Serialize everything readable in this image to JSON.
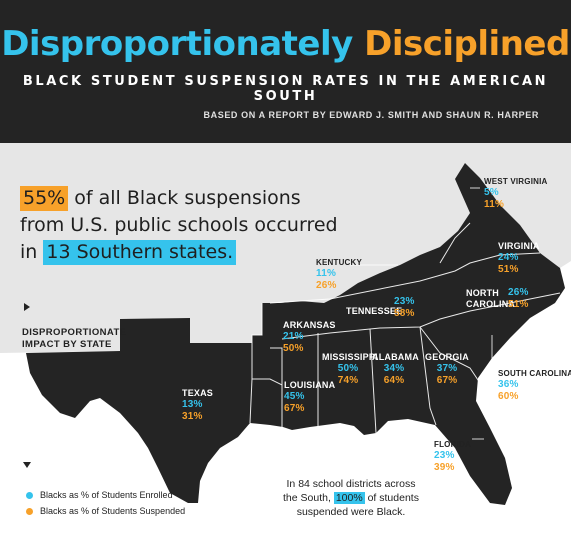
{
  "header": {
    "title_part1": "Disproportionately",
    "title_part2": "Disciplined",
    "subtitle": "BLACK STUDENT SUSPENSION RATES IN THE AMERICAN SOUTH",
    "credit": "BASED ON A REPORT BY EDWARD J. SMITH AND SHAUN R. HARPER"
  },
  "headline": {
    "pct": "55%",
    "text1": "of all Black suspensions",
    "text2": "from U.S. public schools occurred",
    "text3": "in",
    "states": "13 Southern states."
  },
  "impact_label_line1": "DISPROPORTIONATE",
  "impact_label_line2": "IMPACT BY STATE",
  "states": {
    "west_virginia": {
      "name": "WEST VIRGINIA",
      "enrolled": "5%",
      "suspended": "11%"
    },
    "kentucky": {
      "name": "KENTUCKY",
      "enrolled": "11%",
      "suspended": "26%"
    },
    "virginia": {
      "name": "VIRGINIA",
      "enrolled": "24%",
      "suspended": "51%"
    },
    "north_carolina": {
      "name_line1": "NORTH",
      "name_line2": "CAROLINA",
      "enrolled": "26%",
      "suspended": "51%"
    },
    "tennessee": {
      "name": "TENNESSEE",
      "enrolled": "23%",
      "suspended": "58%"
    },
    "arkansas": {
      "name": "ARKANSAS",
      "enrolled": "21%",
      "suspended": "50%"
    },
    "mississippi": {
      "name": "MISSISSIPPI",
      "enrolled": "50%",
      "suspended": "74%"
    },
    "alabama": {
      "name": "ALABAMA",
      "enrolled": "34%",
      "suspended": "64%"
    },
    "georgia": {
      "name": "GEORGIA",
      "enrolled": "37%",
      "suspended": "67%"
    },
    "south_carolina": {
      "name": "SOUTH CAROLINA",
      "enrolled": "36%",
      "suspended": "60%"
    },
    "texas": {
      "name": "TEXAS",
      "enrolled": "13%",
      "suspended": "31%"
    },
    "louisiana": {
      "name": "LOUISIANA",
      "enrolled": "45%",
      "suspended": "67%"
    },
    "florida": {
      "name": "FLORIDA",
      "enrolled": "23%",
      "suspended": "39%"
    }
  },
  "legend": {
    "enrolled": "Blacks as % of Students Enrolled",
    "suspended": "Blacks as % of Students Suspended"
  },
  "note": {
    "line1": "In 84 school districts across",
    "pre": "the South,",
    "pct": "100%",
    "post": "of students",
    "line3": "suspended were Black."
  },
  "colors": {
    "enrolled": "#35c3ec",
    "suspended": "#f7a12a",
    "dark": "#242424",
    "land": "#e6e6e6"
  }
}
